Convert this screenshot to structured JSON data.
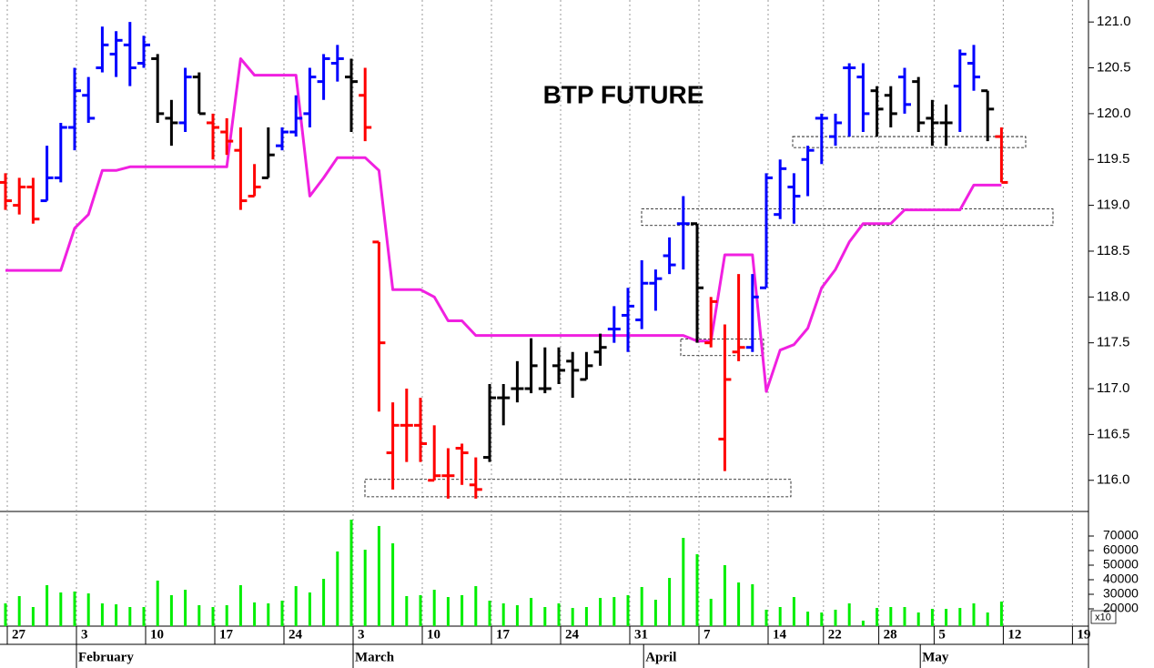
{
  "chart_data": [
    {
      "type": "ohlc",
      "title": "BTP FUTURE",
      "categories": [
        "27",
        null,
        null,
        null,
        null,
        "3",
        null,
        null,
        null,
        null,
        "10",
        null,
        null,
        null,
        null,
        "17",
        null,
        null,
        null,
        null,
        "24",
        null,
        null,
        null,
        null,
        "3",
        null,
        null,
        null,
        null,
        "10",
        null,
        null,
        null,
        null,
        "17",
        null,
        null,
        null,
        null,
        "24",
        null,
        null,
        null,
        null,
        "31",
        null,
        null,
        null,
        null,
        "7",
        null,
        null,
        null,
        null,
        "14",
        null,
        null,
        null,
        "22",
        null,
        null,
        null,
        "28",
        null,
        null,
        null,
        "5",
        null,
        null,
        null,
        null,
        "12",
        null,
        null,
        null,
        null,
        "19"
      ],
      "months": [
        null,
        null,
        null,
        null,
        null,
        "February",
        null,
        null,
        null,
        null,
        null,
        null,
        null,
        null,
        null,
        null,
        null,
        null,
        null,
        null,
        null,
        null,
        null,
        null,
        null,
        "March",
        null,
        null,
        null,
        null,
        null,
        null,
        null,
        null,
        null,
        null,
        null,
        null,
        null,
        null,
        null,
        null,
        null,
        null,
        null,
        null,
        "April",
        null,
        null,
        null,
        null,
        null,
        null,
        null,
        null,
        null,
        null,
        null,
        null,
        null,
        null,
        null,
        null,
        null,
        null,
        null,
        "May",
        null,
        null,
        null,
        null,
        null,
        null,
        null,
        null,
        null,
        null,
        null
      ],
      "open": [
        119.25,
        119.0,
        119.2,
        119.05,
        119.3,
        119.85,
        120.2,
        120.5,
        120.65,
        120.75,
        120.55,
        120.6,
        119.95,
        119.9,
        120.4,
        119.9,
        119.8,
        119.6,
        119.1,
        119.3,
        119.65,
        119.8,
        120.0,
        120.35,
        120.55,
        120.4,
        120.2,
        118.6,
        116.3,
        116.6,
        116.6,
        116.0,
        116.05,
        116.35,
        115.95,
        116.25,
        116.9,
        117.0,
        117.0,
        117.0,
        117.25,
        117.3,
        117.1,
        117.4,
        117.65,
        117.8,
        117.75,
        118.15,
        118.45,
        118.8,
        118.8,
        117.5,
        116.45,
        117.4,
        117.45,
        118.1,
        118.9,
        119.2,
        119.5,
        119.95,
        119.75,
        120.5,
        120.4,
        120.25,
        120.2,
        120.4,
        120.35,
        119.95,
        119.9,
        120.3,
        120.55,
        120.25,
        119.75,
        null,
        null,
        null,
        null,
        null
      ],
      "high": [
        119.35,
        119.3,
        119.3,
        119.65,
        119.9,
        120.5,
        120.4,
        120.95,
        120.9,
        121.0,
        120.85,
        120.65,
        120.15,
        120.5,
        120.45,
        120.0,
        119.95,
        119.85,
        119.45,
        119.85,
        119.85,
        120.2,
        120.5,
        120.65,
        120.75,
        120.6,
        120.5,
        118.6,
        116.85,
        117.0,
        116.9,
        116.6,
        116.35,
        116.4,
        116.25,
        117.05,
        117.05,
        117.3,
        117.55,
        117.45,
        117.45,
        117.4,
        117.4,
        117.6,
        117.9,
        118.1,
        118.4,
        118.3,
        118.65,
        119.1,
        118.8,
        118.0,
        117.7,
        118.25,
        118.25,
        119.35,
        119.5,
        119.35,
        119.65,
        120.0,
        120.0,
        120.55,
        120.55,
        120.3,
        120.3,
        120.5,
        120.4,
        120.15,
        120.1,
        120.7,
        120.75,
        120.25,
        119.85,
        null,
        null,
        null,
        null,
        null
      ],
      "low": [
        118.95,
        118.9,
        118.8,
        119.05,
        119.25,
        119.6,
        119.9,
        120.45,
        120.4,
        120.3,
        120.5,
        119.9,
        119.65,
        119.8,
        120.0,
        119.5,
        119.55,
        118.95,
        119.1,
        119.3,
        119.6,
        119.75,
        119.85,
        120.15,
        120.35,
        119.8,
        119.7,
        116.75,
        115.9,
        116.2,
        116.2,
        116.0,
        115.8,
        115.95,
        115.8,
        116.2,
        116.6,
        116.85,
        116.95,
        116.95,
        117.05,
        116.9,
        117.1,
        117.25,
        117.5,
        117.4,
        117.65,
        117.85,
        118.25,
        118.3,
        117.5,
        117.45,
        116.1,
        117.3,
        117.4,
        118.1,
        118.85,
        118.8,
        119.1,
        119.45,
        119.65,
        119.75,
        119.8,
        119.75,
        119.85,
        120.0,
        119.8,
        119.65,
        119.65,
        119.8,
        120.25,
        119.7,
        119.25,
        null,
        null,
        null,
        null,
        null
      ],
      "close": [
        119.05,
        119.2,
        118.85,
        119.3,
        119.85,
        120.25,
        119.95,
        120.75,
        120.8,
        120.5,
        120.75,
        120.0,
        119.9,
        120.4,
        120.0,
        119.85,
        119.7,
        119.05,
        119.2,
        119.55,
        119.8,
        119.95,
        120.4,
        120.6,
        120.6,
        120.35,
        119.85,
        117.5,
        116.6,
        116.6,
        116.4,
        116.05,
        116.05,
        116.3,
        115.9,
        116.9,
        116.9,
        117.0,
        117.25,
        117.0,
        117.2,
        117.2,
        117.25,
        117.45,
        117.65,
        117.9,
        118.15,
        118.2,
        118.35,
        118.8,
        118.1,
        117.95,
        117.1,
        117.45,
        118.0,
        119.3,
        119.4,
        119.1,
        119.6,
        119.95,
        119.9,
        120.5,
        120.0,
        120.05,
        120.0,
        120.1,
        119.9,
        119.9,
        119.9,
        120.65,
        120.4,
        120.05,
        119.25,
        null,
        null,
        null,
        null,
        null
      ],
      "colors": [
        "#ff0000",
        "#ff0000",
        "#ff0000",
        "#0000ff",
        "#0000ff",
        "#0000ff",
        "#0000ff",
        "#0000ff",
        "#0000ff",
        "#0000ff",
        "#0000ff",
        "#000000",
        "#000000",
        "#0000ff",
        "#000000",
        "#ff0000",
        "#ff0000",
        "#ff0000",
        "#ff0000",
        "#000000",
        "#0000ff",
        "#0000ff",
        "#0000ff",
        "#0000ff",
        "#0000ff",
        "#000000",
        "#ff0000",
        "#ff0000",
        "#ff0000",
        "#ff0000",
        "#ff0000",
        "#ff0000",
        "#ff0000",
        "#ff0000",
        "#ff0000",
        "#000000",
        "#000000",
        "#000000",
        "#000000",
        "#000000",
        "#000000",
        "#000000",
        "#000000",
        "#000000",
        "#0000ff",
        "#0000ff",
        "#0000ff",
        "#0000ff",
        "#0000ff",
        "#0000ff",
        "#000000",
        "#ff0000",
        "#ff0000",
        "#ff0000",
        "#0000ff",
        "#0000ff",
        "#0000ff",
        "#0000ff",
        "#0000ff",
        "#0000ff",
        "#0000ff",
        "#0000ff",
        "#0000ff",
        "#000000",
        "#000000",
        "#0000ff",
        "#000000",
        "#000000",
        "#000000",
        "#0000ff",
        "#0000ff",
        "#000000",
        "#ff0000",
        null,
        null,
        null,
        null,
        null
      ],
      "line": {
        "color": "#f020e0",
        "values": [
          118.29,
          118.29,
          118.29,
          118.29,
          118.29,
          118.75,
          118.9,
          119.38,
          119.38,
          119.42,
          119.42,
          119.42,
          119.42,
          119.42,
          119.42,
          119.42,
          119.42,
          120.6,
          120.42,
          120.42,
          120.42,
          120.42,
          119.1,
          119.3,
          119.52,
          119.52,
          119.52,
          119.38,
          118.08,
          118.08,
          118.08,
          118.0,
          117.74,
          117.74,
          117.58,
          117.58,
          117.58,
          117.58,
          117.58,
          117.58,
          117.58,
          117.58,
          117.58,
          117.58,
          117.58,
          117.58,
          117.58,
          117.58,
          117.58,
          117.58,
          117.52,
          117.52,
          118.46,
          118.46,
          118.46,
          116.97,
          117.42,
          117.48,
          117.66,
          118.1,
          118.3,
          118.6,
          118.8,
          118.8,
          118.8,
          118.95,
          118.95,
          118.95,
          118.95,
          118.95,
          119.22,
          119.22,
          119.22,
          null,
          null,
          null,
          null,
          null
        ]
      },
      "zones": [
        {
          "from": 115.82,
          "to": 116.01
        },
        {
          "from": 118.78,
          "to": 118.96
        },
        {
          "from": 119.63,
          "to": 119.75
        },
        {
          "from": 117.36,
          "to": 117.54
        }
      ],
      "ylim": [
        115.66,
        121.24
      ],
      "yticks": [
        {
          "value": 116,
          "label": "116.0"
        },
        {
          "value": 116.5,
          "label": "116.5"
        },
        {
          "value": 117,
          "label": "117.0"
        },
        {
          "value": 117.5,
          "label": "117.5"
        },
        {
          "value": 118,
          "label": "118.0"
        },
        {
          "value": 118.5,
          "label": "118.5"
        },
        {
          "value": 119,
          "label": "119.0"
        },
        {
          "value": 119.5,
          "label": "119.5"
        },
        {
          "value": 120,
          "label": "120.0"
        },
        {
          "value": 120.5,
          "label": "120.5"
        },
        {
          "value": 121,
          "label": "121.0"
        }
      ],
      "grid": true
    },
    {
      "type": "bar",
      "color": "#00ee00",
      "scale_label": "x10",
      "values": [
        23750,
        28750,
        21250,
        36250,
        31250,
        31900,
        30600,
        23750,
        23100,
        21250,
        21250,
        39400,
        29400,
        33100,
        22500,
        21250,
        22500,
        36250,
        24400,
        23750,
        25600,
        35600,
        31250,
        40600,
        59400,
        81250,
        60600,
        76900,
        65000,
        28750,
        29400,
        33100,
        28100,
        29400,
        35600,
        25600,
        23750,
        22500,
        27500,
        21250,
        23750,
        20600,
        21250,
        27500,
        28100,
        29400,
        35000,
        26250,
        41250,
        68750,
        57500,
        26900,
        50000,
        38100,
        36900,
        19400,
        21250,
        28100,
        18100,
        17500,
        19400,
        23750,
        11900,
        20600,
        21250,
        21250,
        17500,
        20000,
        20000,
        20600,
        23750,
        17500,
        25000,
        null,
        null,
        null,
        null,
        null
      ],
      "ylim": [
        8125,
        86875
      ],
      "yticks": [
        20000,
        30000,
        40000,
        50000,
        60000,
        70000
      ]
    }
  ]
}
